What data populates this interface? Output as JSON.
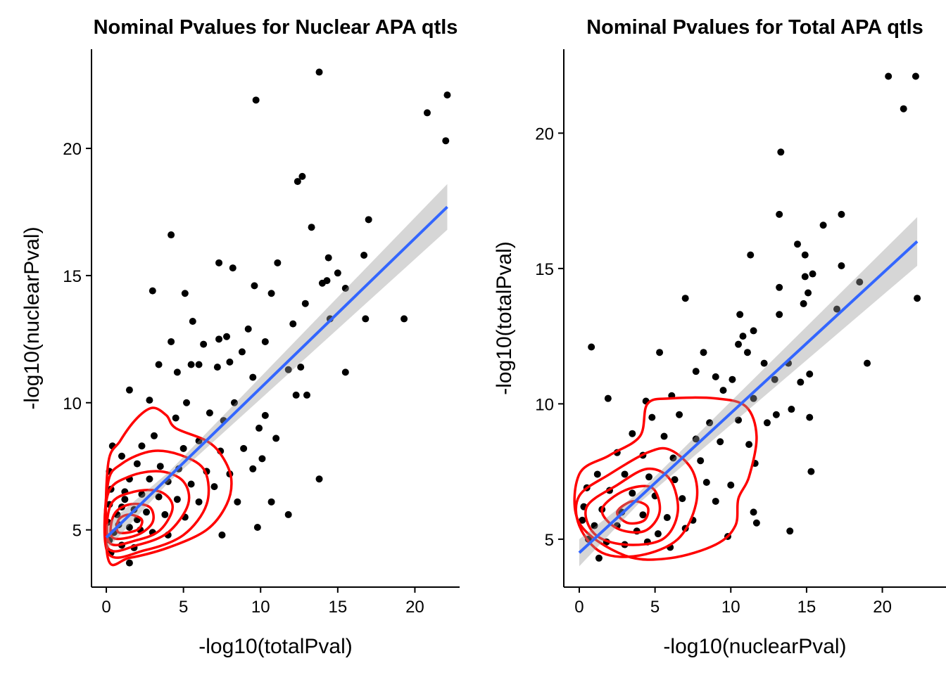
{
  "chart_data": [
    {
      "type": "scatter",
      "title": "Nominal Pvalues for Nuclear APA qtls",
      "x_label": "-log10(totalPval)",
      "y_label": "-log10(nuclearPval)",
      "xlim": [
        -0.96,
        22.9
      ],
      "ylim": [
        2.75,
        23.9
      ],
      "xticks": [
        0,
        5,
        10,
        15,
        20
      ],
      "yticks": [
        5,
        10,
        15,
        20
      ],
      "color": "#000000",
      "x": [
        13.8,
        9.7,
        22.1,
        20.8,
        22.0,
        12.7,
        12.4,
        17.0,
        13.3,
        4.2,
        16.7,
        14.4,
        7.3,
        11.1,
        8.2,
        15.0,
        14.3,
        14.0,
        9.6,
        15.5,
        3.0,
        5.1,
        10.7,
        12.9,
        14.5,
        16.8,
        19.3,
        5.6,
        12.1,
        9.2,
        7.8,
        7.3,
        4.2,
        10.3,
        6.3,
        8.8,
        3.4,
        5.5,
        6.0,
        7.2,
        11.8,
        12.6,
        15.5,
        4.6,
        8.0,
        9.5,
        1.5,
        12.3,
        13.0,
        2.8,
        5.2,
        8.3,
        6.7,
        10.3,
        4.5,
        7.6,
        9.9,
        11.0,
        3.1,
        6.0,
        8.9,
        0.4,
        2.3,
        5.0,
        7.4,
        10.1,
        1.0,
        2.0,
        3.5,
        4.7,
        6.5,
        8.0,
        9.5,
        0.2,
        1.5,
        2.8,
        4.0,
        5.5,
        7.0,
        13.8,
        0.3,
        1.2,
        2.3,
        3.4,
        4.6,
        6.0,
        8.5,
        10.7,
        0.2,
        1.0,
        1.8,
        2.6,
        3.8,
        5.1,
        11.8,
        0.1,
        0.8,
        1.5,
        2.2,
        3.0,
        4.0,
        9.8,
        7.5,
        0.2,
        1.0,
        1.8,
        0.3,
        1.5,
        0.5,
        0.7,
        1.2,
        2.0
      ],
      "values": [
        23.0,
        21.9,
        22.1,
        21.4,
        20.3,
        18.9,
        18.7,
        17.2,
        16.9,
        16.6,
        15.8,
        15.7,
        15.5,
        15.5,
        15.3,
        15.1,
        14.8,
        14.7,
        14.6,
        14.5,
        14.4,
        14.3,
        14.3,
        13.9,
        13.3,
        13.3,
        13.3,
        13.2,
        13.1,
        12.9,
        12.6,
        12.5,
        12.4,
        12.4,
        12.3,
        12.0,
        11.5,
        11.5,
        11.5,
        11.4,
        11.3,
        11.4,
        11.2,
        11.2,
        11.6,
        11.0,
        10.5,
        10.3,
        10.3,
        10.1,
        10.0,
        10.0,
        9.6,
        9.5,
        9.4,
        9.3,
        9.0,
        8.6,
        8.7,
        8.5,
        8.2,
        8.3,
        8.3,
        8.2,
        8.1,
        7.8,
        7.9,
        7.6,
        7.5,
        7.4,
        7.3,
        7.2,
        7.4,
        7.3,
        7.0,
        7.0,
        6.9,
        6.8,
        6.7,
        7.0,
        6.6,
        6.5,
        6.4,
        6.3,
        6.2,
        6.1,
        6.1,
        6.1,
        6.0,
        5.9,
        5.8,
        5.7,
        5.6,
        5.5,
        5.6,
        5.3,
        5.2,
        5.1,
        5.0,
        4.9,
        4.8,
        5.1,
        4.8,
        4.6,
        4.4,
        4.3,
        4.1,
        3.7,
        4.9,
        5.6,
        6.2,
        5.4
      ],
      "trend": {
        "color": "#3366ff",
        "band_color": "#999999",
        "x": [
          0,
          4,
          22.1
        ],
        "y": [
          4.7,
          7.05,
          17.7
        ],
        "lower": [
          4.2,
          6.85,
          16.8
        ],
        "upper": [
          5.2,
          7.25,
          18.6
        ]
      },
      "contour_color": "#ff0000",
      "contours": [
        {
          "x": [
            0.1,
            1.5,
            4,
            6.5,
            7.8,
            8.1,
            7.5,
            6.5,
            4.5,
            3.9,
            3.0,
            2.0,
            0.9,
            0.1
          ],
          "y": [
            3.9,
            3.9,
            4.3,
            5.0,
            6.0,
            7.0,
            7.9,
            8.5,
            9.0,
            9.5,
            9.8,
            9.4,
            8.5,
            7.5
          ]
        },
        {
          "x": [
            0.1,
            2.5,
            5,
            6.5,
            6.4,
            5,
            3,
            1,
            0.1
          ],
          "y": [
            4.1,
            4.2,
            4.8,
            6,
            7.3,
            7.9,
            8.1,
            7.6,
            6.8
          ]
        },
        {
          "x": [
            0.1,
            2,
            4,
            5.3,
            5,
            3.5,
            1.5,
            0.1
          ],
          "y": [
            4.3,
            4.4,
            4.9,
            6,
            6.9,
            7.3,
            7.1,
            6.4
          ]
        },
        {
          "x": [
            0.2,
            2,
            3.5,
            4.3,
            3.5,
            1.8,
            0.3
          ],
          "y": [
            4.5,
            4.6,
            5.0,
            5.9,
            6.5,
            6.5,
            6.0
          ]
        },
        {
          "x": [
            0.4,
            2,
            3,
            2.8,
            1.5,
            0.5
          ],
          "y": [
            4.7,
            4.8,
            5.3,
            5.9,
            6.0,
            5.6
          ]
        },
        {
          "x": [
            0.8,
            2,
            2.3,
            1.5,
            0.8
          ],
          "y": [
            4.9,
            5.0,
            5.4,
            5.6,
            5.4
          ]
        }
      ]
    },
    {
      "type": "scatter",
      "title": "Nominal Pvalues for Total APA qtls",
      "x_label": "-log10(nuclearPval)",
      "y_label": "-log10(totalPval)",
      "xlim": [
        -1.02,
        24.2
      ],
      "ylim": [
        3.23,
        23.1
      ],
      "xticks": [
        0,
        5,
        10,
        15,
        20
      ],
      "yticks": [
        5,
        10,
        15,
        20
      ],
      "color": "#000000",
      "x": [
        20.4,
        22.2,
        21.4,
        13.3,
        13.2,
        17.3,
        16.1,
        11.3,
        14.4,
        14.9,
        17.3,
        15.4,
        14.9,
        13.2,
        15.1,
        18.5,
        22.3,
        7.0,
        14.8,
        17.0,
        10.6,
        13.2,
        11.5,
        10.8,
        0.8,
        5.3,
        8.2,
        11.1,
        10.5,
        12.2,
        13.8,
        19.0,
        9.0,
        10.1,
        7.7,
        12.9,
        14.6,
        15.2,
        1.9,
        4.4,
        6.1,
        9.5,
        11.5,
        13.0,
        14.0,
        15.2,
        4.8,
        6.6,
        8.6,
        10.5,
        12.4,
        3.5,
        5.6,
        7.7,
        9.3,
        11.2,
        2.5,
        4.2,
        6.2,
        8.0,
        11.6,
        1.2,
        3.0,
        4.6,
        6.3,
        8.4,
        10.0,
        15.3,
        0.5,
        2.0,
        3.5,
        5.0,
        6.8,
        9.0,
        11.5,
        0.3,
        1.5,
        2.8,
        4.2,
        5.8,
        7.5,
        11.7,
        0.2,
        1.0,
        2.5,
        3.8,
        5.2,
        7.0,
        13.9,
        0.6,
        1.8,
        3.0,
        4.5,
        9.8,
        1.3,
        6.0
      ],
      "values": [
        22.1,
        22.1,
        20.9,
        19.3,
        17.0,
        17.0,
        16.6,
        15.5,
        15.9,
        15.5,
        15.1,
        14.8,
        14.7,
        14.3,
        14.1,
        14.5,
        13.9,
        13.9,
        13.7,
        13.5,
        13.3,
        13.3,
        12.7,
        12.5,
        12.1,
        11.9,
        11.9,
        11.9,
        12.2,
        11.5,
        11.5,
        11.5,
        11.0,
        10.9,
        11.2,
        10.9,
        10.8,
        11.1,
        10.2,
        10.1,
        10.3,
        10.5,
        10.2,
        9.6,
        9.8,
        9.5,
        9.5,
        9.6,
        9.3,
        9.4,
        9.3,
        8.9,
        8.8,
        8.7,
        8.6,
        8.5,
        8.2,
        8.1,
        8.0,
        7.9,
        7.8,
        7.4,
        7.4,
        7.3,
        7.2,
        7.1,
        7.0,
        7.5,
        6.9,
        6.8,
        6.7,
        6.6,
        6.5,
        6.4,
        6.0,
        6.2,
        6.1,
        6.0,
        5.9,
        5.8,
        5.7,
        5.6,
        5.7,
        5.5,
        5.5,
        5.3,
        5.2,
        5.4,
        5.3,
        5.0,
        4.9,
        4.8,
        4.9,
        5.1,
        4.3,
        4.7
      ],
      "trend": {
        "color": "#3366ff",
        "band_color": "#999999",
        "x": [
          0,
          4,
          22.3
        ],
        "y": [
          4.5,
          6.56,
          16.0
        ],
        "lower": [
          4.0,
          6.36,
          15.1
        ],
        "upper": [
          5.0,
          6.76,
          16.9
        ]
      },
      "contour_color": "#ff0000",
      "contours": [
        {
          "x": [
            0,
            2,
            4,
            4.5,
            6,
            9,
            11,
            11.7,
            11.2,
            10.5,
            10.3,
            9,
            6,
            3,
            0
          ],
          "y": [
            7.4,
            8.1,
            8.8,
            10,
            10.2,
            10.2,
            9.9,
            8.8,
            7.3,
            6.5,
            5.5,
            4.8,
            4.3,
            4.4,
            5.6
          ]
        },
        {
          "x": [
            0,
            2,
            4.5,
            6,
            7.5,
            7.7,
            6.5,
            4,
            1.5,
            0
          ],
          "y": [
            6.6,
            7.4,
            8.2,
            8.3,
            7.5,
            6.3,
            5.0,
            4.4,
            4.5,
            5.5
          ]
        },
        {
          "x": [
            0.5,
            2.5,
            4.5,
            6,
            6.5,
            5.5,
            3,
            1
          ],
          "y": [
            6.2,
            7.0,
            7.6,
            7.2,
            6.0,
            5.0,
            4.8,
            5.2
          ]
        },
        {
          "x": [
            1.5,
            3,
            4.8,
            5.3,
            4.3,
            2.5
          ],
          "y": [
            6.1,
            6.8,
            6.9,
            6.0,
            5.3,
            5.4
          ]
        },
        {
          "x": [
            2.5,
            3.5,
            4.5,
            4.3,
            3.2
          ],
          "y": [
            6.0,
            6.4,
            6.2,
            5.7,
            5.6
          ]
        }
      ]
    }
  ]
}
